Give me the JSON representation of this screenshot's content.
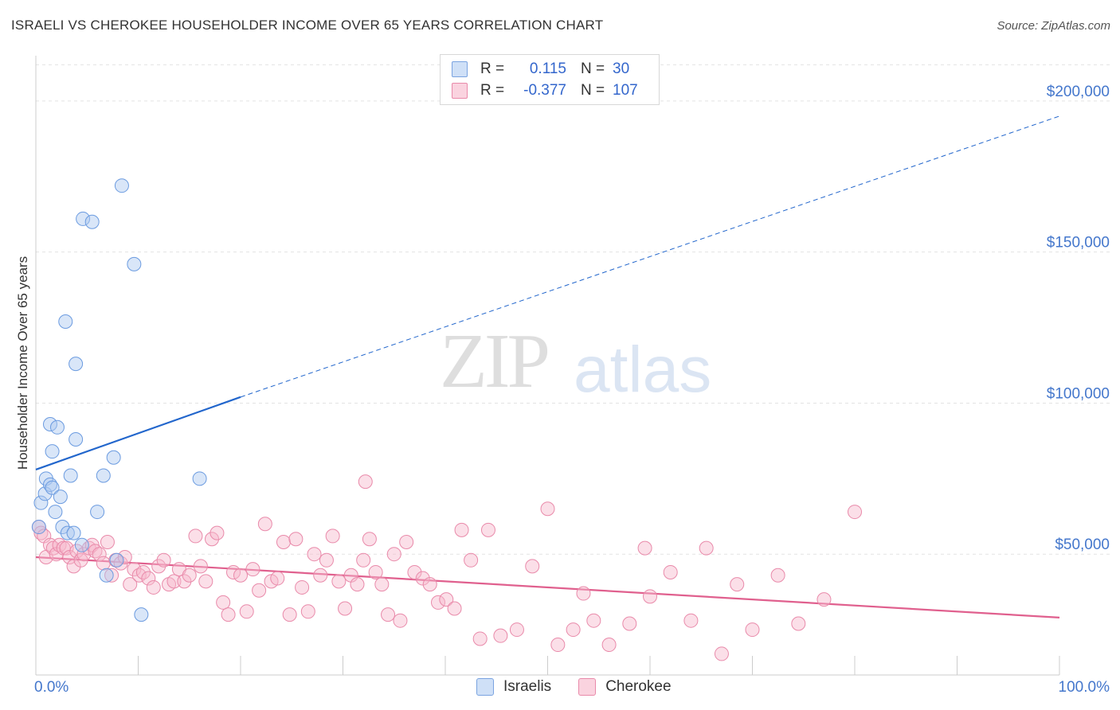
{
  "title": "ISRAELI VS CHEROKEE HOUSEHOLDER INCOME OVER 65 YEARS CORRELATION CHART",
  "source": "Source: ZipAtlas.com",
  "watermark": {
    "zip": "ZIP",
    "atlas": "atlas"
  },
  "legend_top": [
    {
      "r_label": "R =",
      "r_value": "0.115",
      "n_label": "N =",
      "n_value": "30",
      "color": "#aac8f0"
    },
    {
      "r_label": "R =",
      "r_value": "-0.377",
      "n_label": "N =",
      "n_value": "107",
      "color": "#f6b8cc"
    }
  ],
  "legend_bottom": [
    {
      "label": "Israelis",
      "color": "#aac8f0"
    },
    {
      "label": "Cherokee",
      "color": "#f6b8cc"
    }
  ],
  "chart_data": {
    "type": "scatter",
    "title": "ISRAELI VS CHEROKEE HOUSEHOLDER INCOME OVER 65 YEARS CORRELATION CHART",
    "xlabel": "",
    "ylabel": "Householder Income Over 65 years",
    "xlim": [
      0,
      100
    ],
    "ylim": [
      10000,
      215000
    ],
    "x_tick_labels": [
      {
        "value": 0,
        "label": "0.0%"
      },
      {
        "value": 100,
        "label": "100.0%"
      }
    ],
    "y_tick_labels": [
      {
        "value": 50000,
        "label": "$50,000"
      },
      {
        "value": 100000,
        "label": "$100,000"
      },
      {
        "value": 150000,
        "label": "$150,000"
      },
      {
        "value": 200000,
        "label": "$200,000"
      }
    ],
    "grid": true,
    "series": [
      {
        "name": "Israelis",
        "color": "#aac8f0",
        "stroke": "#6b9be0",
        "trend": {
          "x": [
            0,
            20
          ],
          "y": [
            78000,
            102000
          ],
          "dashed_to": [
            100,
            195000
          ],
          "color": "#2266cc"
        },
        "points": [
          [
            0.5,
            67000
          ],
          [
            0.9,
            70000
          ],
          [
            1.0,
            75000
          ],
          [
            1.4,
            73000
          ],
          [
            1.6,
            72000
          ],
          [
            1.4,
            93000
          ],
          [
            1.6,
            84000
          ],
          [
            1.9,
            64000
          ],
          [
            2.1,
            92000
          ],
          [
            2.4,
            69000
          ],
          [
            2.6,
            59000
          ],
          [
            2.9,
            127000
          ],
          [
            3.1,
            57000
          ],
          [
            3.4,
            76000
          ],
          [
            3.7,
            57000
          ],
          [
            3.9,
            113000
          ],
          [
            3.9,
            88000
          ],
          [
            4.5,
            53000
          ],
          [
            4.6,
            161000
          ],
          [
            5.5,
            160000
          ],
          [
            6.0,
            64000
          ],
          [
            6.6,
            76000
          ],
          [
            6.9,
            43000
          ],
          [
            7.6,
            82000
          ],
          [
            7.9,
            48000
          ],
          [
            8.4,
            172000
          ],
          [
            9.6,
            146000
          ],
          [
            10.3,
            30000
          ],
          [
            16.0,
            75000
          ],
          [
            0.3,
            59000
          ]
        ]
      },
      {
        "name": "Cherokee",
        "color": "#f6b8cc",
        "stroke": "#e98aaa",
        "trend": {
          "x": [
            0,
            100
          ],
          "y": [
            49000,
            29000
          ],
          "color": "#e0608e"
        },
        "points": [
          [
            0.3,
            59000
          ],
          [
            0.5,
            57000
          ],
          [
            0.8,
            56000
          ],
          [
            1.0,
            49000
          ],
          [
            1.4,
            53000
          ],
          [
            1.7,
            52000
          ],
          [
            2.0,
            50000
          ],
          [
            2.3,
            53000
          ],
          [
            2.7,
            52000
          ],
          [
            3.0,
            52000
          ],
          [
            3.3,
            49000
          ],
          [
            3.7,
            46000
          ],
          [
            4.0,
            51000
          ],
          [
            4.4,
            48000
          ],
          [
            4.7,
            50000
          ],
          [
            5.2,
            52000
          ],
          [
            5.5,
            53000
          ],
          [
            5.8,
            51000
          ],
          [
            6.2,
            50000
          ],
          [
            6.6,
            47000
          ],
          [
            7.0,
            54000
          ],
          [
            7.4,
            43000
          ],
          [
            7.8,
            48000
          ],
          [
            8.3,
            47000
          ],
          [
            8.7,
            49000
          ],
          [
            9.2,
            40000
          ],
          [
            9.6,
            45000
          ],
          [
            10.1,
            43000
          ],
          [
            10.5,
            44000
          ],
          [
            11.0,
            42000
          ],
          [
            11.5,
            39000
          ],
          [
            12.0,
            46000
          ],
          [
            12.5,
            48000
          ],
          [
            13.0,
            40000
          ],
          [
            13.5,
            41000
          ],
          [
            14.0,
            45000
          ],
          [
            14.5,
            41000
          ],
          [
            15.0,
            43000
          ],
          [
            15.6,
            56000
          ],
          [
            16.1,
            46000
          ],
          [
            16.6,
            41000
          ],
          [
            17.2,
            55000
          ],
          [
            17.7,
            57000
          ],
          [
            18.3,
            34000
          ],
          [
            18.8,
            30000
          ],
          [
            19.3,
            44000
          ],
          [
            20.0,
            43000
          ],
          [
            20.6,
            31000
          ],
          [
            21.2,
            45000
          ],
          [
            21.8,
            38000
          ],
          [
            22.4,
            60000
          ],
          [
            23.0,
            41000
          ],
          [
            23.6,
            42000
          ],
          [
            24.2,
            54000
          ],
          [
            24.8,
            30000
          ],
          [
            25.4,
            55000
          ],
          [
            26.0,
            39000
          ],
          [
            26.6,
            31000
          ],
          [
            27.2,
            50000
          ],
          [
            27.8,
            43000
          ],
          [
            28.4,
            48000
          ],
          [
            29.0,
            56000
          ],
          [
            29.6,
            41000
          ],
          [
            30.2,
            32000
          ],
          [
            30.8,
            43000
          ],
          [
            31.4,
            40000
          ],
          [
            32.0,
            48000
          ],
          [
            32.6,
            55000
          ],
          [
            33.2,
            44000
          ],
          [
            33.8,
            40000
          ],
          [
            34.4,
            30000
          ],
          [
            35.0,
            50000
          ],
          [
            35.6,
            28000
          ],
          [
            36.2,
            54000
          ],
          [
            37.0,
            44000
          ],
          [
            37.8,
            42000
          ],
          [
            38.5,
            40000
          ],
          [
            39.3,
            34000
          ],
          [
            40.1,
            35000
          ],
          [
            40.9,
            32000
          ],
          [
            41.6,
            58000
          ],
          [
            42.5,
            48000
          ],
          [
            43.4,
            22000
          ],
          [
            44.2,
            58000
          ],
          [
            45.4,
            23000
          ],
          [
            47.0,
            25000
          ],
          [
            48.5,
            46000
          ],
          [
            50.0,
            65000
          ],
          [
            51.0,
            20000
          ],
          [
            52.5,
            25000
          ],
          [
            53.5,
            37000
          ],
          [
            54.5,
            28000
          ],
          [
            56.0,
            20000
          ],
          [
            58.0,
            27000
          ],
          [
            59.5,
            52000
          ],
          [
            60.0,
            36000
          ],
          [
            62.0,
            44000
          ],
          [
            64.0,
            28000
          ],
          [
            65.5,
            52000
          ],
          [
            67.0,
            17000
          ],
          [
            68.5,
            40000
          ],
          [
            70.0,
            25000
          ],
          [
            72.5,
            43000
          ],
          [
            74.5,
            27000
          ],
          [
            77.0,
            35000
          ],
          [
            80.0,
            64000
          ],
          [
            32.2,
            74000
          ]
        ]
      }
    ]
  }
}
